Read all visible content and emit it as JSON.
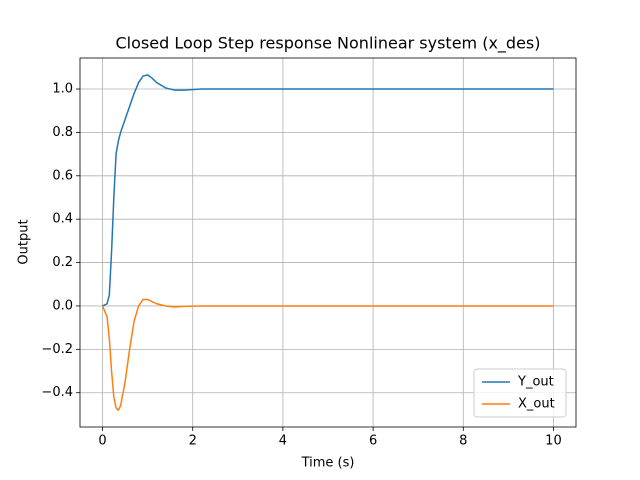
{
  "chart_data": {
    "type": "line",
    "title": "Closed Loop Step response Nonlinear system (x_des)",
    "xlabel": "Time (s)",
    "ylabel": "Output",
    "x": [
      0,
      0.1,
      0.15,
      0.2,
      0.25,
      0.3,
      0.35,
      0.4,
      0.5,
      0.6,
      0.7,
      0.8,
      0.9,
      1.0,
      1.1,
      1.2,
      1.4,
      1.6,
      1.8,
      2.2,
      3,
      5,
      7,
      10
    ],
    "series": [
      {
        "name": "Y_out",
        "color": "#1f77b4",
        "values": [
          0,
          0.01,
          0.05,
          0.25,
          0.5,
          0.7,
          0.76,
          0.8,
          0.86,
          0.92,
          0.98,
          1.03,
          1.06,
          1.065,
          1.05,
          1.03,
          1.005,
          0.995,
          0.995,
          1,
          1,
          1,
          1,
          1
        ]
      },
      {
        "name": "X_out",
        "color": "#ff7f0e",
        "values": [
          0,
          -0.05,
          -0.15,
          -0.3,
          -0.42,
          -0.47,
          -0.48,
          -0.46,
          -0.35,
          -0.2,
          -0.07,
          0.0,
          0.03,
          0.03,
          0.02,
          0.01,
          0.0,
          -0.005,
          -0.002,
          0,
          0,
          0,
          0,
          0
        ]
      }
    ],
    "xlim": [
      -0.5,
      10.5
    ],
    "ylim": [
      -0.558,
      1.143
    ],
    "xticks": [
      0,
      2,
      4,
      6,
      8,
      10
    ],
    "yticks": [
      {
        "value": -0.4,
        "label": "−0.4"
      },
      {
        "value": -0.2,
        "label": "−0.2"
      },
      {
        "value": 0,
        "label": "0.0"
      },
      0.2,
      0.4,
      0.6,
      0.8,
      {
        "value": 1,
        "label": "1.0"
      }
    ],
    "grid": true,
    "legend": "lower right"
  }
}
